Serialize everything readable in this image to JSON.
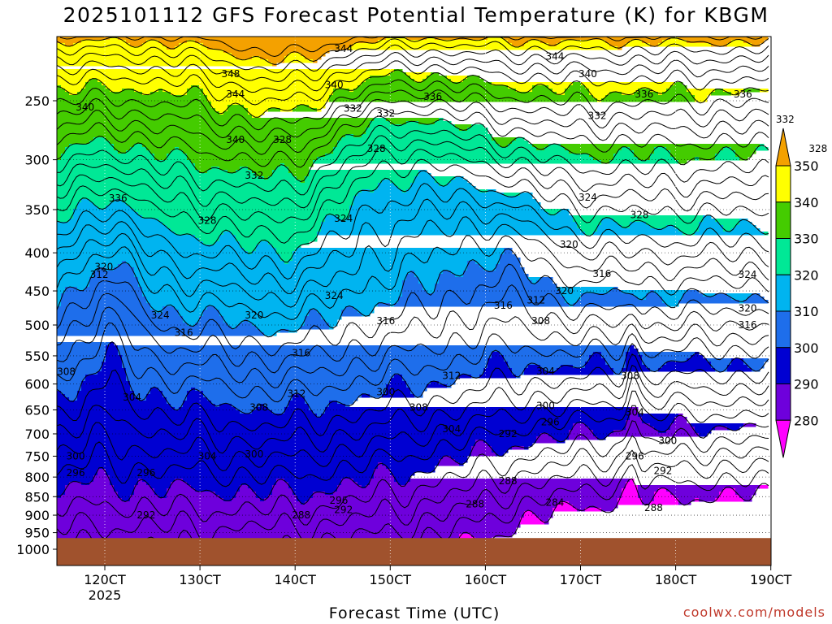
{
  "chart_data": {
    "type": "heatmap",
    "title": "2025101112 GFS Forecast Potential Temperature (K) for KBGM",
    "xlabel": "Forecast Time (UTC)",
    "ylabel": "",
    "x_ticks": [
      "120CT",
      "130CT",
      "140CT",
      "150CT",
      "160CT",
      "170CT",
      "180CT",
      "190CT"
    ],
    "x_year_label": "2025",
    "y_ticks": [
      250,
      300,
      350,
      400,
      450,
      500,
      550,
      600,
      650,
      700,
      750,
      800,
      850,
      900,
      950,
      1000
    ],
    "y_range": [
      200,
      1000
    ],
    "y_scale": "log",
    "grid": true,
    "colorbar": {
      "ticks": [
        350,
        340,
        330,
        320,
        310,
        300,
        290,
        280
      ],
      "levels": [
        {
          "min": 350,
          "max": null,
          "color": "#f4a100"
        },
        {
          "min": 340,
          "max": 350,
          "color": "#ffff00"
        },
        {
          "min": 330,
          "max": 340,
          "color": "#44cc00"
        },
        {
          "min": 320,
          "max": 330,
          "color": "#00e896"
        },
        {
          "min": 310,
          "max": 320,
          "color": "#00b4f0"
        },
        {
          "min": 300,
          "max": 310,
          "color": "#1e6eeb"
        },
        {
          "min": 290,
          "max": 300,
          "color": "#0000d2"
        },
        {
          "min": 280,
          "max": 290,
          "color": "#6e00dc"
        },
        {
          "min": null,
          "max": 280,
          "color": "#ff00ff"
        }
      ],
      "ground_color": "#a0522d"
    },
    "contour_labels": [
      {
        "t": 0.6,
        "p": 255,
        "v": "340"
      },
      {
        "t": 3.7,
        "p": 230,
        "v": "348"
      },
      {
        "t": 3.8,
        "p": 245,
        "v": "344"
      },
      {
        "t": 3.8,
        "p": 282,
        "v": "340"
      },
      {
        "t": 6.1,
        "p": 213,
        "v": "344"
      },
      {
        "t": 5.9,
        "p": 238,
        "v": "340"
      },
      {
        "t": 6.3,
        "p": 256,
        "v": "332"
      },
      {
        "t": 4.2,
        "p": 315,
        "v": "332"
      },
      {
        "t": 1.3,
        "p": 338,
        "v": "336"
      },
      {
        "t": 3.2,
        "p": 362,
        "v": "328"
      },
      {
        "t": 4.8,
        "p": 282,
        "v": "328"
      },
      {
        "t": 6.8,
        "p": 290,
        "v": "328"
      },
      {
        "t": 7.0,
        "p": 260,
        "v": "332"
      },
      {
        "t": 6.1,
        "p": 360,
        "v": "324"
      },
      {
        "t": 8.0,
        "p": 247,
        "v": "336"
      },
      {
        "t": 10.6,
        "p": 218,
        "v": "344"
      },
      {
        "t": 11.3,
        "p": 230,
        "v": "340"
      },
      {
        "t": 12.5,
        "p": 245,
        "v": "336"
      },
      {
        "t": 11.5,
        "p": 262,
        "v": "332"
      },
      {
        "t": 14.6,
        "p": 245,
        "v": "336"
      },
      {
        "t": 15.5,
        "p": 265,
        "v": "332"
      },
      {
        "t": 16.2,
        "p": 290,
        "v": "328"
      },
      {
        "t": 11.3,
        "p": 337,
        "v": "324"
      },
      {
        "t": 12.4,
        "p": 356,
        "v": "328"
      },
      {
        "t": 14.7,
        "p": 428,
        "v": "324"
      },
      {
        "t": 10.9,
        "p": 390,
        "v": "320"
      },
      {
        "t": 10.8,
        "p": 450,
        "v": "320"
      },
      {
        "t": 11.6,
        "p": 427,
        "v": "316"
      },
      {
        "t": 14.7,
        "p": 475,
        "v": "320"
      },
      {
        "t": 9.5,
        "p": 471,
        "v": "316"
      },
      {
        "t": 14.7,
        "p": 500,
        "v": "316"
      },
      {
        "t": 0.9,
        "p": 428,
        "v": "312"
      },
      {
        "t": 1.0,
        "p": 418,
        "v": "320"
      },
      {
        "t": 2.2,
        "p": 485,
        "v": "324"
      },
      {
        "t": 2.7,
        "p": 512,
        "v": "316"
      },
      {
        "t": 5.9,
        "p": 457,
        "v": "324"
      },
      {
        "t": 4.2,
        "p": 485,
        "v": "320"
      },
      {
        "t": 5.2,
        "p": 545,
        "v": "316"
      },
      {
        "t": 7.0,
        "p": 494,
        "v": "316"
      },
      {
        "t": 8.4,
        "p": 585,
        "v": "312"
      },
      {
        "t": 10.2,
        "p": 463,
        "v": "312"
      },
      {
        "t": 10.3,
        "p": 494,
        "v": "308"
      },
      {
        "t": 10.4,
        "p": 577,
        "v": "304"
      },
      {
        "t": 12.2,
        "p": 585,
        "v": "308"
      },
      {
        "t": 0.2,
        "p": 578,
        "v": "308"
      },
      {
        "t": 1.6,
        "p": 625,
        "v": "304"
      },
      {
        "t": 4.3,
        "p": 645,
        "v": "308"
      },
      {
        "t": 5.1,
        "p": 618,
        "v": "312"
      },
      {
        "t": 7.7,
        "p": 645,
        "v": "308"
      },
      {
        "t": 8.4,
        "p": 690,
        "v": "304"
      },
      {
        "t": 7.0,
        "p": 615,
        "v": "300"
      },
      {
        "t": 10.4,
        "p": 642,
        "v": "300"
      },
      {
        "t": 12.3,
        "p": 655,
        "v": "304"
      },
      {
        "t": 13.0,
        "p": 715,
        "v": "300"
      },
      {
        "t": 10.5,
        "p": 675,
        "v": "296"
      },
      {
        "t": 12.3,
        "p": 750,
        "v": "296"
      },
      {
        "t": 9.6,
        "p": 700,
        "v": "292"
      },
      {
        "t": 3.2,
        "p": 750,
        "v": "304"
      },
      {
        "t": 4.2,
        "p": 745,
        "v": "300"
      },
      {
        "t": 1.9,
        "p": 790,
        "v": "296"
      },
      {
        "t": 1.9,
        "p": 900,
        "v": "292"
      },
      {
        "t": 0.4,
        "p": 750,
        "v": "300"
      },
      {
        "t": 0.4,
        "p": 790,
        "v": "296"
      },
      {
        "t": 6.0,
        "p": 860,
        "v": "296"
      },
      {
        "t": 6.1,
        "p": 885,
        "v": "292"
      },
      {
        "t": 5.2,
        "p": 900,
        "v": "288"
      },
      {
        "t": 9.6,
        "p": 810,
        "v": "288"
      },
      {
        "t": 10.6,
        "p": 865,
        "v": "284"
      },
      {
        "t": 12.7,
        "p": 880,
        "v": "288"
      },
      {
        "t": 12.9,
        "p": 785,
        "v": "292"
      },
      {
        "t": 8.9,
        "p": 870,
        "v": "288"
      }
    ]
  },
  "footer": {
    "credit": "coolwx.com/models"
  }
}
